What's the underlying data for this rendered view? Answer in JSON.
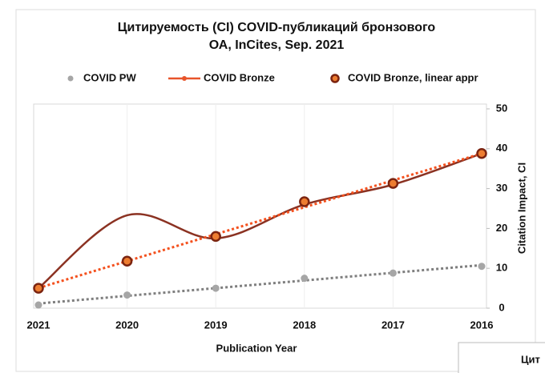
{
  "chart_data": {
    "type": "line",
    "title": [
      "Цитируемость (CI) COVID-публикаций бронзового",
      "ОА, InCites, Sep. 2021"
    ],
    "categories": [
      "2021",
      "2020",
      "2019",
      "2018",
      "2017",
      "2016"
    ],
    "series": [
      {
        "name": "COVID PW",
        "color": "#a6a6a6",
        "style": "markers-trend",
        "values": [
          0.8,
          3.3,
          5,
          7.5,
          8.8,
          10.5
        ]
      },
      {
        "name": "COVID Bronze",
        "color": "#8b3222",
        "style": "smooth-line",
        "values": [
          5,
          23.3,
          17.5,
          26,
          31,
          38.8
        ]
      },
      {
        "name": "COVID Bronze, linear appr",
        "color": "#ed7d31",
        "style": "markers-trend",
        "values": [
          5,
          11.8,
          18,
          26.7,
          31.3,
          38.8
        ]
      }
    ],
    "ylim": [
      0,
      50
    ],
    "yticks": [
      0,
      10,
      20,
      30,
      40,
      50
    ],
    "yaxis_side": "right",
    "ylabel": "Citation Impact, CI",
    "xlabel": "Publication Year",
    "xgrid": true,
    "legend": "top",
    "corner_text": "Цит"
  }
}
